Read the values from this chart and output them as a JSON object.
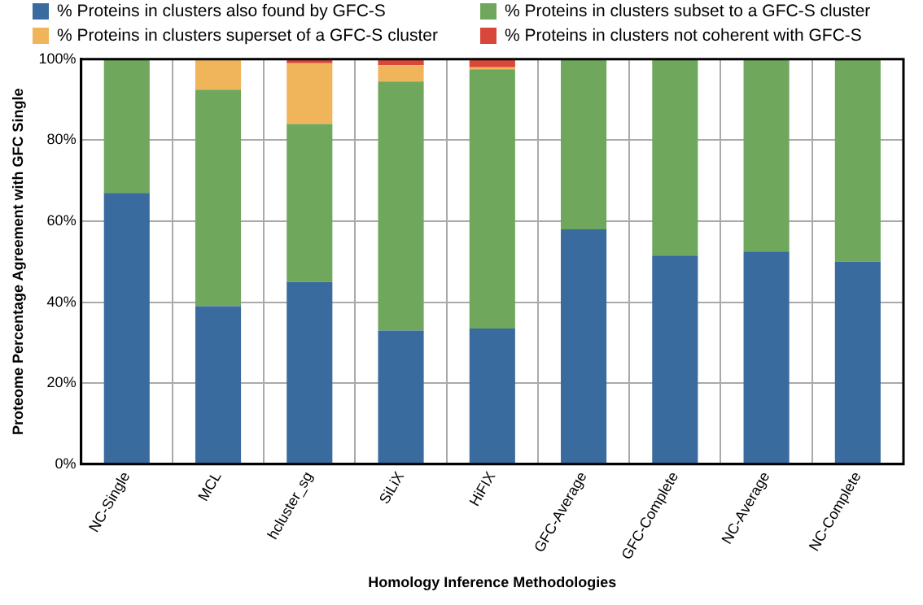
{
  "chart_data": {
    "type": "bar",
    "stacked": true,
    "xlabel": "Homology Inference Methodologies",
    "ylabel": "Proteome Percentage Agreement with GFC Single",
    "categories": [
      "NC-Single",
      "MCL",
      "hcluster_sg",
      "SiLiX",
      "HiFIX",
      "GFC-Average",
      "GFC-Complete",
      "NC-Average",
      "NC-Complete"
    ],
    "series": [
      {
        "name": "% Proteins in clusters also found by GFC-S",
        "color": "#3a6b9e",
        "values": [
          67,
          39,
          45,
          33,
          33.5,
          58,
          51.5,
          52.5,
          50
        ]
      },
      {
        "name": "% Proteins in clusters subset to a GFC-S cluster",
        "color": "#6fa75c",
        "values": [
          33,
          53.5,
          39,
          61.5,
          64,
          42,
          48.5,
          47.5,
          50
        ]
      },
      {
        "name": "% Proteins in clusters superset of a GFC-S cluster",
        "color": "#f0b55a",
        "values": [
          0,
          7.5,
          15,
          4,
          0.5,
          0,
          0,
          0,
          0
        ]
      },
      {
        "name": "% Proteins in clusters not coherent with GFC-S",
        "color": "#d9463a",
        "values": [
          0,
          0,
          1,
          1.5,
          2,
          0,
          0,
          0,
          0
        ]
      }
    ],
    "ylim": [
      0,
      100
    ],
    "yticks": [
      {
        "value": 0,
        "label": "0%"
      },
      {
        "value": 20,
        "label": "20%"
      },
      {
        "value": 40,
        "label": "40%"
      },
      {
        "value": 60,
        "label": "60%"
      },
      {
        "value": 80,
        "label": "80%"
      },
      {
        "value": 100,
        "label": "100%"
      }
    ],
    "grid": true,
    "legend": "top"
  }
}
